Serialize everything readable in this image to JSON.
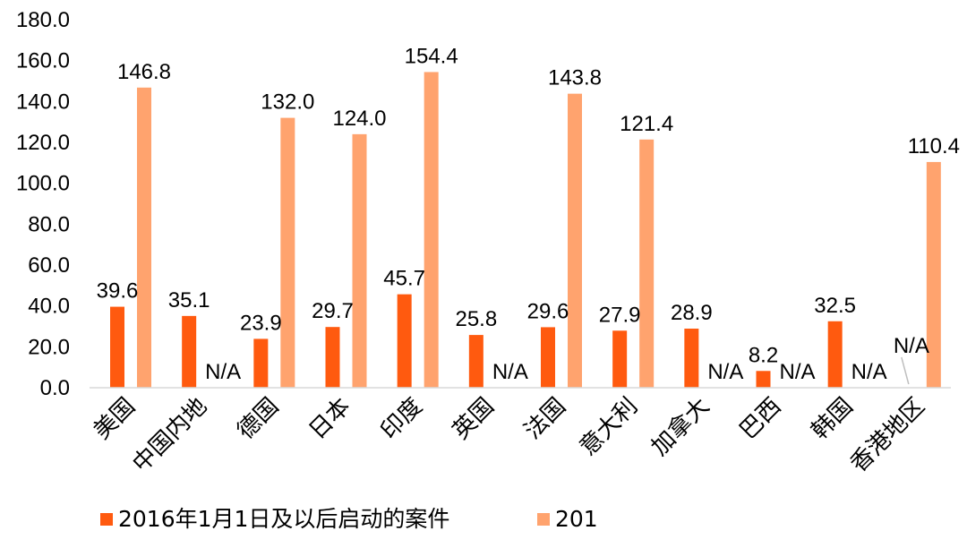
{
  "chart_data": {
    "type": "bar",
    "title": "",
    "xlabel": "",
    "ylabel": "",
    "ylim": [
      0,
      180
    ],
    "ytick_step": 20,
    "ytick_format": "0.0",
    "grid": false,
    "legend_position": "bottom-left",
    "categories": [
      "美国",
      "中国内地",
      "德国",
      "日本",
      "印度",
      "英国",
      "法国",
      "意大利",
      "加拿大",
      "巴西",
      "韩国",
      "香港地区"
    ],
    "series": [
      {
        "name": "2016年1月1日及以后启动的案件",
        "color": "#FF5A0F",
        "values": [
          39.6,
          35.1,
          23.9,
          29.7,
          45.7,
          25.8,
          29.6,
          27.9,
          28.9,
          8.2,
          32.5,
          null
        ],
        "labels": [
          "39.6",
          "35.1",
          "23.9",
          "29.7",
          "45.7",
          "25.8",
          "29.6",
          "27.9",
          "28.9",
          "8.2",
          "32.5",
          "N/A"
        ]
      },
      {
        "name": "201",
        "color": "#FFA36E",
        "values": [
          146.8,
          null,
          132.0,
          124.0,
          154.4,
          null,
          143.8,
          121.4,
          null,
          null,
          null,
          110.4
        ],
        "labels": [
          "146.8",
          "N/A",
          "132.0",
          "124.0",
          "154.4",
          "N/A",
          "143.8",
          "121.4",
          "N/A",
          "N/A",
          "N/A",
          "110.4"
        ]
      }
    ]
  }
}
